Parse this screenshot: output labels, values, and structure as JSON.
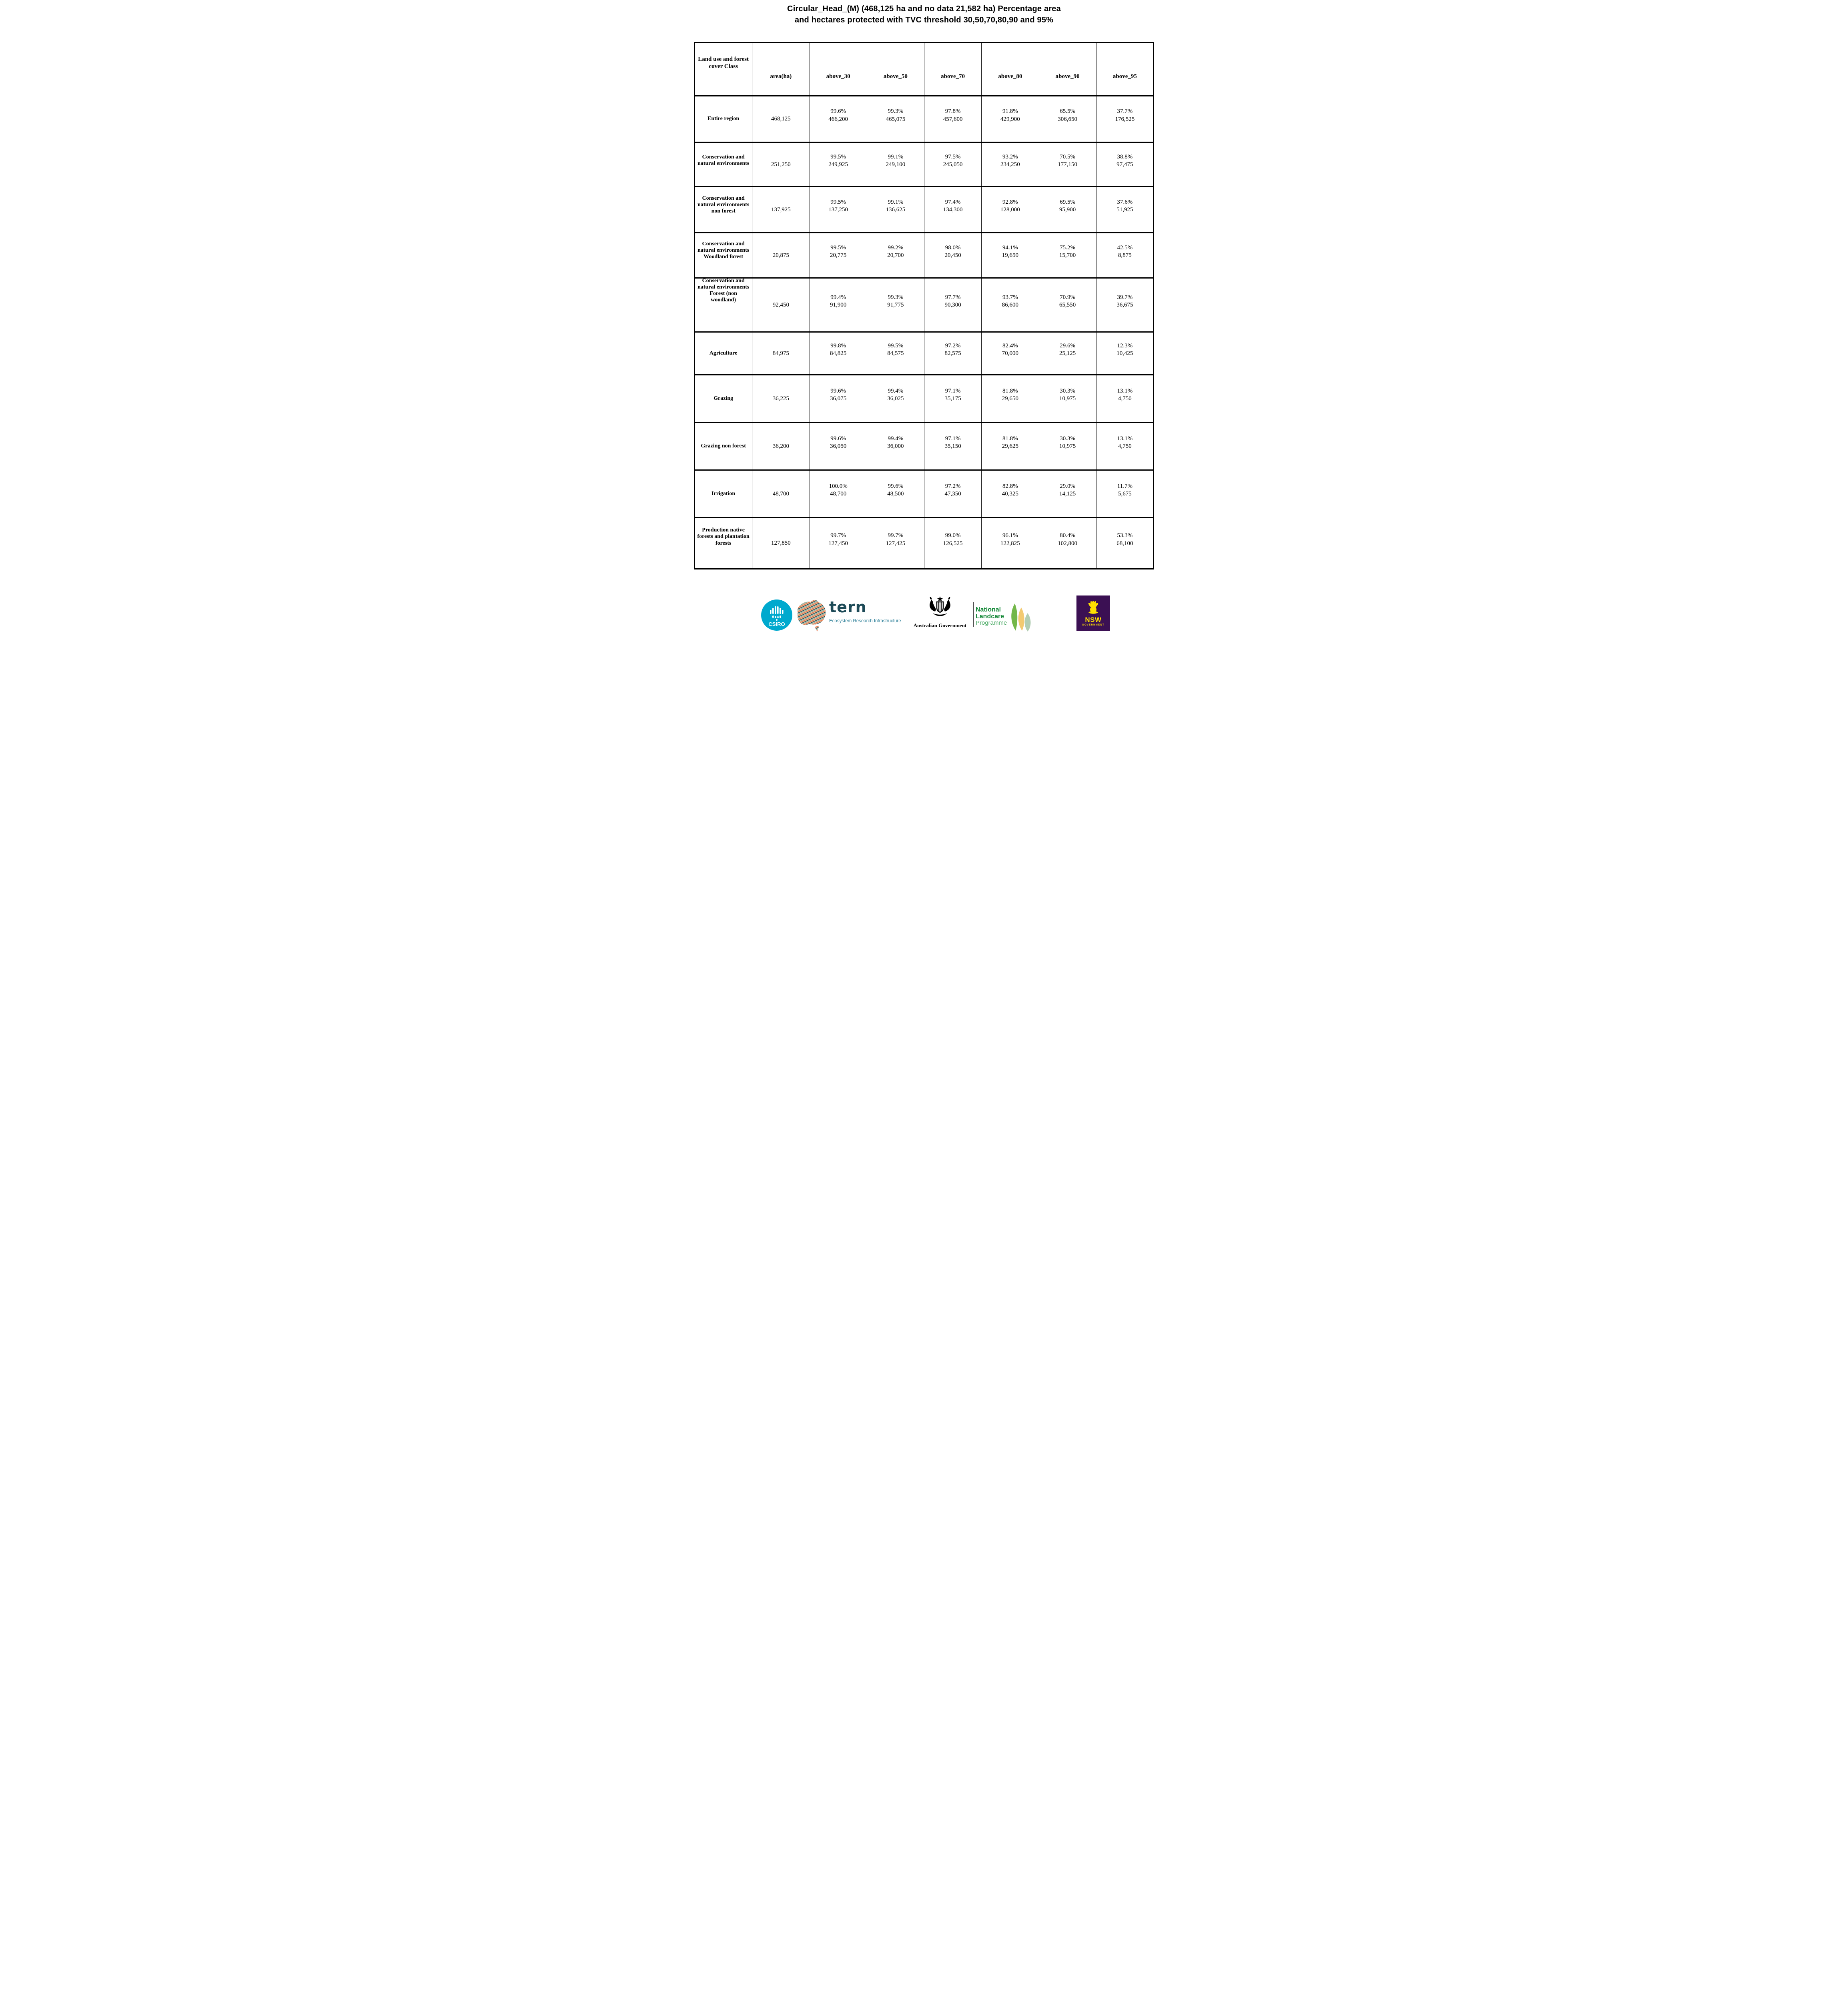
{
  "title_line1": "Circular_Head_(M) (468,125 ha and no data 21,582 ha) Percentage area",
  "title_line2": "and hectares protected with TVC threshold 30,50,70,80,90 and 95%",
  "table": {
    "columns": [
      "Land use and forest cover Class",
      "area(ha)",
      "above_30",
      "above_50",
      "above_70",
      "above_80",
      "above_90",
      "above_95"
    ],
    "rows": [
      {
        "label": "Entire region",
        "area": "468,125",
        "cells": [
          {
            "pct": "99.6%",
            "ha": "466,200"
          },
          {
            "pct": "99.3%",
            "ha": "465,075"
          },
          {
            "pct": "97.8%",
            "ha": "457,600"
          },
          {
            "pct": "91.8%",
            "ha": "429,900"
          },
          {
            "pct": "65.5%",
            "ha": "306,650"
          },
          {
            "pct": "37.7%",
            "ha": "176,525"
          }
        ]
      },
      {
        "label": "Conservation and natural environments",
        "area": "251,250",
        "cells": [
          {
            "pct": "99.5%",
            "ha": "249,925"
          },
          {
            "pct": "99.1%",
            "ha": "249,100"
          },
          {
            "pct": "97.5%",
            "ha": "245,050"
          },
          {
            "pct": "93.2%",
            "ha": "234,250"
          },
          {
            "pct": "70.5%",
            "ha": "177,150"
          },
          {
            "pct": "38.8%",
            "ha": "97,475"
          }
        ]
      },
      {
        "label": "Conservation and natural environments non forest",
        "area": "137,925",
        "cells": [
          {
            "pct": "99.5%",
            "ha": "137,250"
          },
          {
            "pct": "99.1%",
            "ha": "136,625"
          },
          {
            "pct": "97.4%",
            "ha": "134,300"
          },
          {
            "pct": "92.8%",
            "ha": "128,000"
          },
          {
            "pct": "69.5%",
            "ha": "95,900"
          },
          {
            "pct": "37.6%",
            "ha": "51,925"
          }
        ]
      },
      {
        "label": "Conservation and natural environments Woodland forest",
        "area": "20,875",
        "cells": [
          {
            "pct": "99.5%",
            "ha": "20,775"
          },
          {
            "pct": "99.2%",
            "ha": "20,700"
          },
          {
            "pct": "98.0%",
            "ha": "20,450"
          },
          {
            "pct": "94.1%",
            "ha": "19,650"
          },
          {
            "pct": "75.2%",
            "ha": "15,700"
          },
          {
            "pct": "42.5%",
            "ha": "8,875"
          }
        ]
      },
      {
        "label": "Conservation and natural environments Forest (non woodland)",
        "area": "92,450",
        "cells": [
          {
            "pct": "99.4%",
            "ha": "91,900"
          },
          {
            "pct": "99.3%",
            "ha": "91,775"
          },
          {
            "pct": "97.7%",
            "ha": "90,300"
          },
          {
            "pct": "93.7%",
            "ha": "86,600"
          },
          {
            "pct": "70.9%",
            "ha": "65,550"
          },
          {
            "pct": "39.7%",
            "ha": "36,675"
          }
        ]
      },
      {
        "label": "Agriculture",
        "area": "84,975",
        "cells": [
          {
            "pct": "99.8%",
            "ha": "84,825"
          },
          {
            "pct": "99.5%",
            "ha": "84,575"
          },
          {
            "pct": "97.2%",
            "ha": "82,575"
          },
          {
            "pct": "82.4%",
            "ha": "70,000"
          },
          {
            "pct": "29.6%",
            "ha": "25,125"
          },
          {
            "pct": "12.3%",
            "ha": "10,425"
          }
        ]
      },
      {
        "label": "Grazing",
        "area": "36,225",
        "cells": [
          {
            "pct": "99.6%",
            "ha": "36,075"
          },
          {
            "pct": "99.4%",
            "ha": "36,025"
          },
          {
            "pct": "97.1%",
            "ha": "35,175"
          },
          {
            "pct": "81.8%",
            "ha": "29,650"
          },
          {
            "pct": "30.3%",
            "ha": "10,975"
          },
          {
            "pct": "13.1%",
            "ha": "4,750"
          }
        ]
      },
      {
        "label": "Grazing non forest",
        "area": "36,200",
        "cells": [
          {
            "pct": "99.6%",
            "ha": "36,050"
          },
          {
            "pct": "99.4%",
            "ha": "36,000"
          },
          {
            "pct": "97.1%",
            "ha": "35,150"
          },
          {
            "pct": "81.8%",
            "ha": "29,625"
          },
          {
            "pct": "30.3%",
            "ha": "10,975"
          },
          {
            "pct": "13.1%",
            "ha": "4,750"
          }
        ]
      },
      {
        "label": "Irrigation",
        "area": "48,700",
        "cells": [
          {
            "pct": "100.0%",
            "ha": "48,700"
          },
          {
            "pct": "99.6%",
            "ha": "48,500"
          },
          {
            "pct": "97.2%",
            "ha": "47,350"
          },
          {
            "pct": "82.8%",
            "ha": "40,325"
          },
          {
            "pct": "29.0%",
            "ha": "14,125"
          },
          {
            "pct": "11.7%",
            "ha": "5,675"
          }
        ]
      },
      {
        "label": "Production native forests and plantation forests",
        "area": "127,850",
        "cells": [
          {
            "pct": "99.7%",
            "ha": "127,450"
          },
          {
            "pct": "99.7%",
            "ha": "127,425"
          },
          {
            "pct": "99.0%",
            "ha": "126,525"
          },
          {
            "pct": "96.1%",
            "ha": "122,825"
          },
          {
            "pct": "80.4%",
            "ha": "102,800"
          },
          {
            "pct": "53.3%",
            "ha": "68,100"
          }
        ]
      }
    ]
  },
  "footer": {
    "csiro": {
      "label": "CSIRO",
      "teal": "#00A9CE"
    },
    "tern": {
      "wordmark": "tern",
      "subtitle": "Ecosystem Research Infrastructure",
      "dark": "#1D4A57",
      "teal": "#2E8099",
      "stripe_colors": [
        "#E97A52",
        "#F5C9A2",
        "#1D4F5E",
        "#7FB5AE"
      ]
    },
    "ausgov": {
      "label": "Australian Government"
    },
    "landcare": {
      "line1": "National",
      "line2": "Landcare",
      "line3": "Programme",
      "green": "#168939",
      "light_green": "#45A860",
      "leaf_colors": [
        "#6CB33F",
        "#F0BD4E",
        "#9FC2A0"
      ]
    },
    "nsw": {
      "label": "NSW",
      "sublabel": "GOVERNMENT",
      "purple": "#3B1053",
      "yellow": "#FFE000"
    }
  }
}
